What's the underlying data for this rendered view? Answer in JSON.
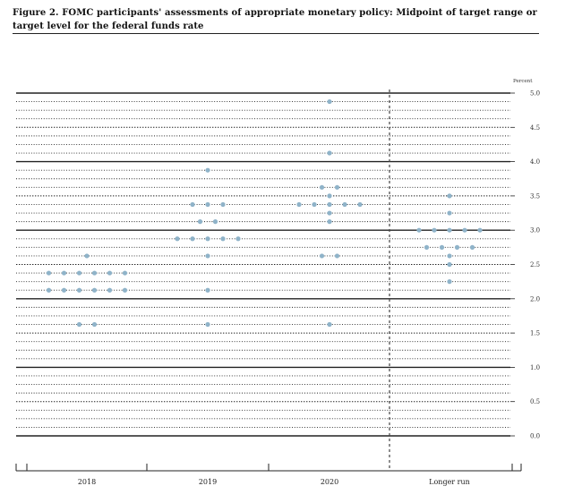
{
  "title": "Figure 2. FOMC participants' assessments of appropriate monetary policy: Midpoint of target range or target level for the federal funds rate",
  "chart_data": {
    "type": "scatter",
    "title": "Figure 2. FOMC participants' assessments of appropriate monetary policy: Midpoint of target range or target level for the federal funds rate",
    "unit_label": "Percent",
    "ylim": [
      0,
      5.0
    ],
    "y_ticks": [
      "5.0",
      "4.5",
      "4.0",
      "3.5",
      "3.0",
      "2.5",
      "2.0",
      "1.5",
      "1.0",
      "0.5",
      "0.0"
    ],
    "categories": [
      "2018",
      "2019",
      "2020",
      "Longer run"
    ],
    "dot_color": "#8fb3c9",
    "groups": [
      {
        "category": "2018",
        "levels": [
          {
            "y": 2.625,
            "count": 1
          },
          {
            "y": 2.375,
            "count": 6
          },
          {
            "y": 2.125,
            "count": 6
          },
          {
            "y": 1.625,
            "count": 2
          }
        ]
      },
      {
        "category": "2019",
        "levels": [
          {
            "y": 3.875,
            "count": 1
          },
          {
            "y": 3.375,
            "count": 3
          },
          {
            "y": 3.125,
            "count": 2
          },
          {
            "y": 2.875,
            "count": 5
          },
          {
            "y": 2.625,
            "count": 1
          },
          {
            "y": 2.125,
            "count": 1
          },
          {
            "y": 1.625,
            "count": 1
          }
        ]
      },
      {
        "category": "2020",
        "levels": [
          {
            "y": 4.875,
            "count": 1
          },
          {
            "y": 4.125,
            "count": 1
          },
          {
            "y": 3.625,
            "count": 2
          },
          {
            "y": 3.5,
            "count": 1
          },
          {
            "y": 3.375,
            "count": 5
          },
          {
            "y": 3.25,
            "count": 1
          },
          {
            "y": 3.125,
            "count": 1
          },
          {
            "y": 2.625,
            "count": 2
          },
          {
            "y": 1.625,
            "count": 1
          }
        ]
      },
      {
        "category": "Longer run",
        "levels": [
          {
            "y": 3.5,
            "count": 1
          },
          {
            "y": 3.25,
            "count": 1
          },
          {
            "y": 3.0,
            "count": 5
          },
          {
            "y": 2.75,
            "count": 4
          },
          {
            "y": 2.625,
            "count": 1
          },
          {
            "y": 2.5,
            "count": 1
          },
          {
            "y": 2.25,
            "count": 1
          }
        ]
      }
    ]
  }
}
